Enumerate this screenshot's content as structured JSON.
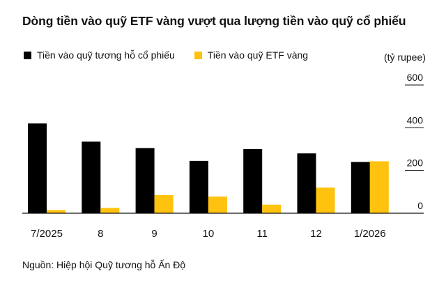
{
  "chart_data": {
    "type": "bar",
    "title": "Dòng tiền vào quỹ ETF vàng vượt qua lượng tiền vào quỹ cổ phiếu",
    "unit_label": "(tỷ rupee)",
    "categories": [
      "7/2025",
      "8",
      "9",
      "10",
      "11",
      "12",
      "1/2026"
    ],
    "series": [
      {
        "name": "Tiền vào quỹ tương hỗ cổ phiếu",
        "color": "#000000",
        "values": [
          420,
          335,
          305,
          245,
          300,
          280,
          240
        ]
      },
      {
        "name": "Tiền vào quỹ ETF vàng",
        "color": "#FFC20E",
        "values": [
          15,
          25,
          85,
          78,
          40,
          120,
          243
        ]
      }
    ],
    "yticks": [
      0,
      200,
      400,
      600
    ],
    "ylim": [
      0,
      600
    ],
    "legend_position": "top-left",
    "grid": false,
    "source": "Nguồn: Hiệp hội Quỹ tương hỗ Ấn Độ"
  }
}
